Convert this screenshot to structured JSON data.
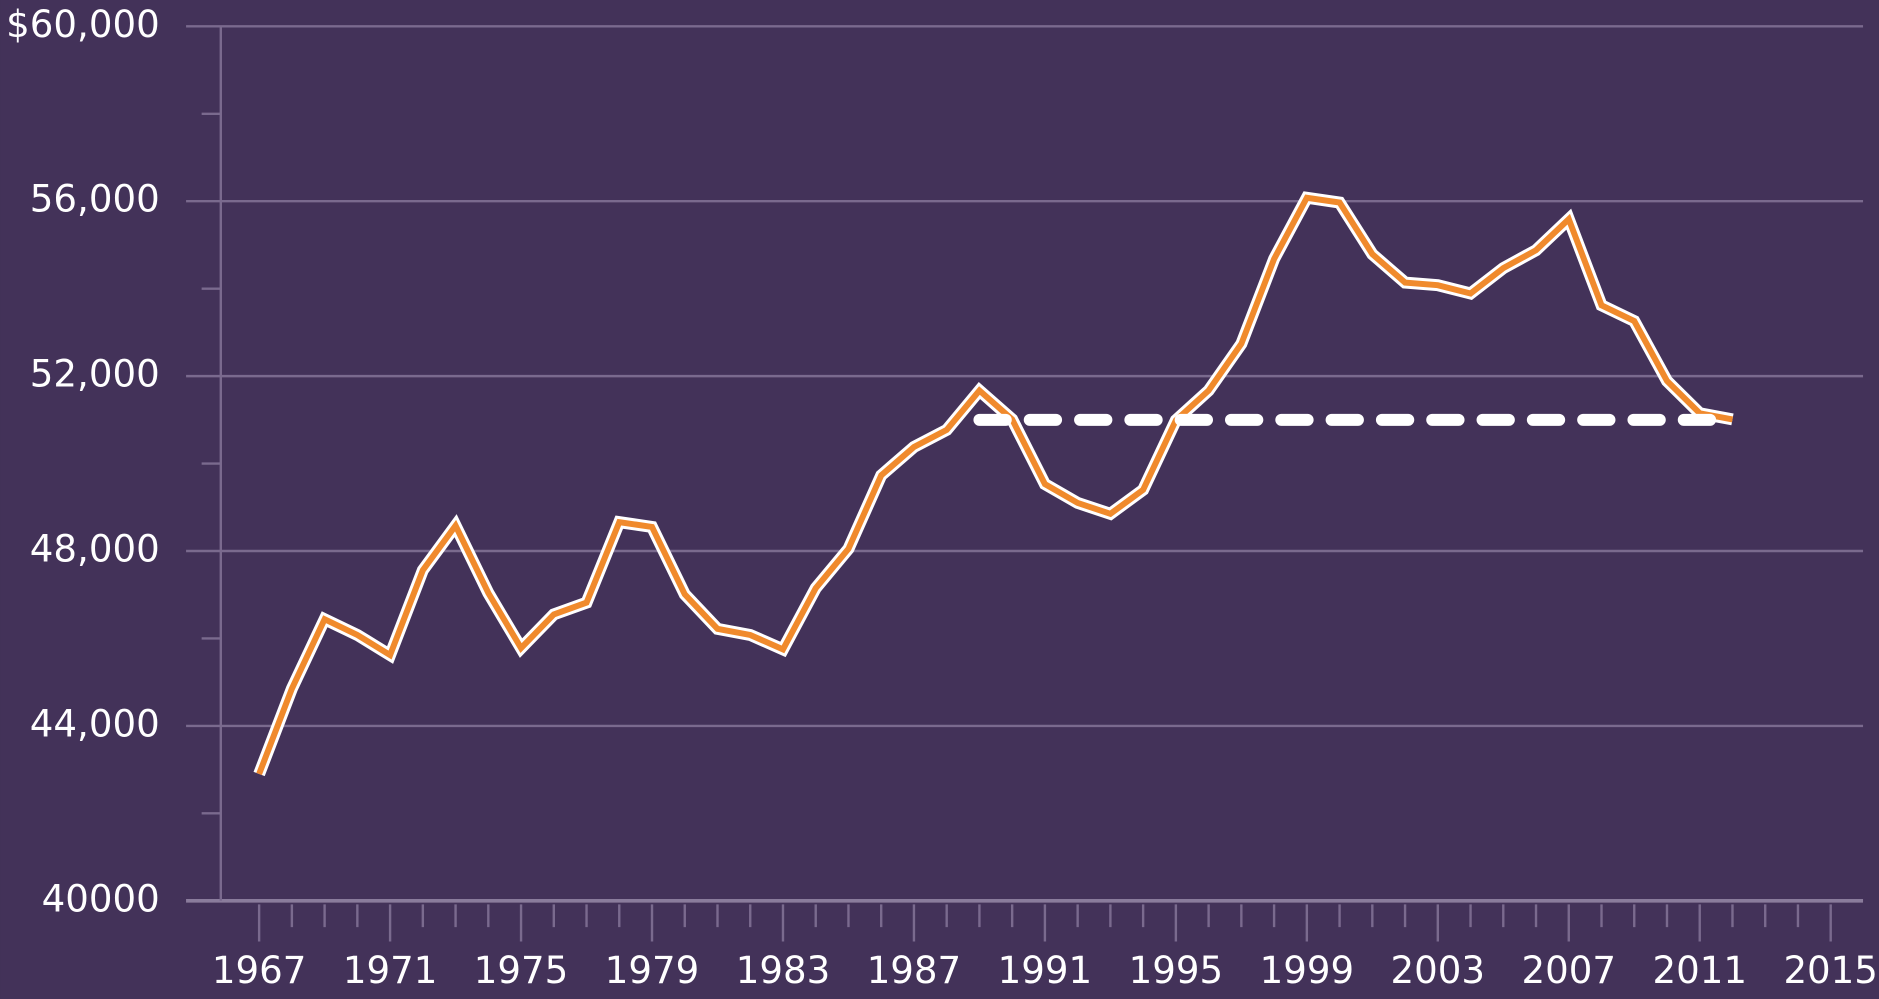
{
  "chart_data": {
    "type": "line",
    "x": [
      1967,
      1968,
      1969,
      1970,
      1971,
      1972,
      1973,
      1974,
      1975,
      1976,
      1977,
      1978,
      1979,
      1980,
      1981,
      1982,
      1983,
      1984,
      1985,
      1986,
      1987,
      1988,
      1989,
      1990,
      1991,
      1992,
      1993,
      1994,
      1995,
      1996,
      1997,
      1998,
      1999,
      2000,
      2001,
      2002,
      2003,
      2004,
      2005,
      2006,
      2007,
      2008,
      2009,
      2010,
      2011,
      2012
    ],
    "series": [
      {
        "color": "#f08a2c",
        "values": [
          42900,
          44850,
          46440,
          46080,
          45620,
          47560,
          48580,
          47040,
          45780,
          46550,
          46820,
          48660,
          48550,
          47010,
          46220,
          46080,
          45750,
          47150,
          48050,
          49730,
          50380,
          50770,
          51670,
          51010,
          49530,
          49100,
          48850,
          49400,
          50990,
          51670,
          52740,
          54680,
          56080,
          55970,
          54790,
          54140,
          54080,
          53890,
          54470,
          54880,
          55590,
          53620,
          53260,
          51890,
          51150,
          51010
        ]
      }
    ],
    "reference_line": {
      "value": 51000,
      "x": [
        1989,
        2012
      ],
      "color": "#ffffff",
      "style": "dashed"
    },
    "xlim": [
      1965.6,
      2016
    ],
    "xticks": [
      1967,
      1971,
      1975,
      1979,
      1983,
      1987,
      1991,
      1995,
      1999,
      2003,
      2007,
      2011,
      2015
    ],
    "xminorticks": [
      1968,
      1969,
      1970,
      1972,
      1973,
      1974,
      1976,
      1977,
      1978,
      1980,
      1981,
      1982,
      1984,
      1985,
      1986,
      1988,
      1989,
      1990,
      1992,
      1993,
      1994,
      1996,
      1997,
      1998,
      2000,
      2001,
      2002,
      2004,
      2005,
      2006,
      2008,
      2009,
      2010,
      2012,
      2013,
      2014
    ],
    "ylim": [
      40000,
      60000
    ],
    "yticks": [
      40000,
      {
        "value": 44000,
        "label": "44,000"
      },
      {
        "value": 48000,
        "label": "48,000"
      },
      {
        "value": 52000,
        "label": "52,000"
      },
      {
        "value": 56000,
        "label": "56,000"
      },
      {
        "value": 60000,
        "label": "$60,000"
      }
    ],
    "yminorticks": [
      42000,
      46000,
      50000,
      54000,
      58000
    ],
    "grid": true
  }
}
